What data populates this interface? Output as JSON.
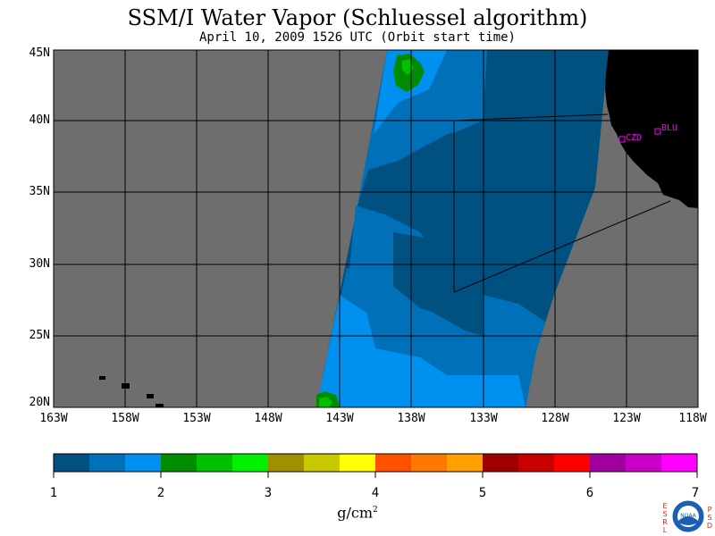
{
  "title": "SSM/I Water Vapor (Schluessel algorithm)",
  "subtitle": "April 10, 2009  1526 UTC  (Orbit start time)",
  "latitude_labels": [
    "45N",
    "40N",
    "35N",
    "30N",
    "25N",
    "20N"
  ],
  "longitude_labels": [
    "163W",
    "158W",
    "153W",
    "148W",
    "143W",
    "138W",
    "133W",
    "128W",
    "123W",
    "118W"
  ],
  "colorbar": {
    "ticks": [
      "1",
      "2",
      "3",
      "4",
      "5",
      "6",
      "7"
    ],
    "unit_base": "g/cm",
    "unit_exp": "2",
    "colors": [
      "#005080",
      "#0070b8",
      "#0090f0",
      "#008c00",
      "#00c000",
      "#00f000",
      "#a09000",
      "#c8c800",
      "#ffff00",
      "#ff5000",
      "#ff7800",
      "#ffa000",
      "#a00000",
      "#c80000",
      "#ff0000",
      "#a000a0",
      "#c800c8",
      "#ff00ff"
    ]
  },
  "map_colors": {
    "background": "#6e6e6e",
    "land": "#000000",
    "low": "#005080",
    "mid": "#0070b8",
    "high": "#0090f0",
    "green": "#008c00",
    "bright_green": "#00c000",
    "station": "#ff00ff"
  },
  "stations": [
    "CZD",
    "BLU"
  ],
  "logo": {
    "left_letters": [
      "E",
      "S",
      "R",
      "L"
    ],
    "right_letters": [
      "P",
      "S",
      "D"
    ],
    "text": "NOAA"
  }
}
